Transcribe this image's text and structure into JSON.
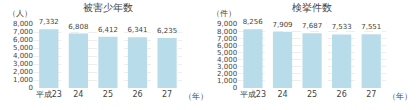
{
  "chart_data": [
    {
      "type": "bar",
      "title": "被害少年数",
      "ylabel": "（人）",
      "xlabel": "（年）",
      "categories": [
        "平成23",
        "24",
        "25",
        "26",
        "27"
      ],
      "values": [
        7332,
        6808,
        6412,
        6341,
        6235
      ],
      "value_labels": [
        "7,332",
        "6,808",
        "6,412",
        "6,341",
        "6,235"
      ],
      "color": "#b8dcea",
      "ylim": [
        0,
        8000
      ],
      "yticks": [
        0,
        {
          "value": 1000,
          "label": "1,000"
        },
        {
          "value": 2000,
          "label": "2,000"
        },
        {
          "value": 3000,
          "label": "3,000"
        },
        {
          "value": 4000,
          "label": "4,000"
        },
        {
          "value": 5000,
          "label": "5,000"
        },
        {
          "value": 6000,
          "label": "6,000"
        },
        {
          "value": 7000,
          "label": "7,000"
        },
        {
          "value": 8000,
          "label": "8,000"
        }
      ],
      "grid": true,
      "data_labels": true
    },
    {
      "type": "bar",
      "title": "検挙件数",
      "ylabel": "（件）",
      "xlabel": "（年）",
      "categories": [
        "平成23",
        "24",
        "25",
        "26",
        "27"
      ],
      "values": [
        8256,
        7909,
        7687,
        7533,
        7551
      ],
      "value_labels": [
        "8,256",
        "7,909",
        "7,687",
        "7,533",
        "7,551"
      ],
      "color": "#b8dcea",
      "ylim": [
        0,
        9000
      ],
      "yticks": [
        0,
        {
          "value": 1000,
          "label": "1,000"
        },
        {
          "value": 2000,
          "label": "2,000"
        },
        {
          "value": 3000,
          "label": "3,000"
        },
        {
          "value": 4000,
          "label": "4,000"
        },
        {
          "value": 5000,
          "label": "5,000"
        },
        {
          "value": 6000,
          "label": "6,000"
        },
        {
          "value": 7000,
          "label": "7,000"
        },
        {
          "value": 8000,
          "label": "8,000"
        },
        {
          "value": 9000,
          "label": "9,000"
        }
      ],
      "grid": true,
      "data_labels": true
    }
  ]
}
